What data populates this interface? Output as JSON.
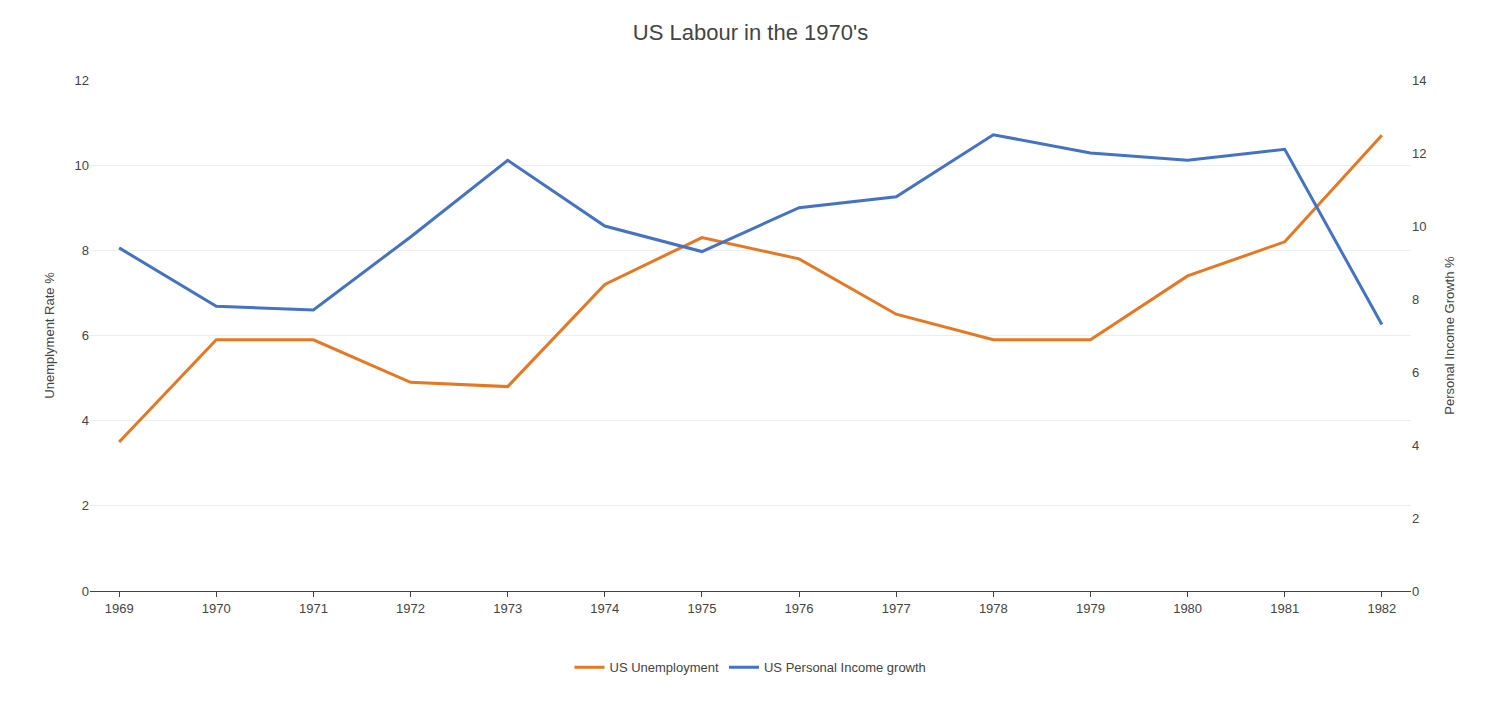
{
  "chart_data": {
    "type": "line",
    "title": "US Labour in the 1970's",
    "x": [
      1969,
      1970,
      1971,
      1972,
      1973,
      1974,
      1975,
      1976,
      1977,
      1978,
      1979,
      1980,
      1981,
      1982
    ],
    "xlim": [
      1968.7,
      1982.3
    ],
    "xticks": [
      1969,
      1970,
      1971,
      1972,
      1973,
      1974,
      1975,
      1976,
      1977,
      1978,
      1979,
      1980,
      1981,
      1982
    ],
    "series": [
      {
        "name": "US Unemployment",
        "color": "#E87722",
        "values": [
          3.5,
          5.9,
          5.9,
          4.9,
          4.8,
          7.2,
          8.3,
          7.8,
          6.5,
          5.9,
          5.9,
          7.4,
          8.2,
          10.7
        ]
      },
      {
        "name": "US Personal Income growth",
        "color": "#4472C4",
        "axis": "y2",
        "values": [
          9.4,
          7.8,
          7.7,
          9.7,
          11.8,
          10.0,
          9.3,
          10.5,
          10.8,
          12.5,
          12.0,
          11.8,
          12.1,
          7.3
        ]
      }
    ],
    "ylabel": "Unemplyment Rate %",
    "y2label": "Personal Income Growth %",
    "ylim": [
      0,
      12
    ],
    "yticks": [
      0,
      2,
      4,
      6,
      8,
      10,
      12
    ],
    "y2lim": [
      0,
      14
    ],
    "y2ticks": [
      0,
      2,
      4,
      6,
      8,
      10,
      12,
      14
    ],
    "grid": true,
    "legend": "bottom"
  }
}
